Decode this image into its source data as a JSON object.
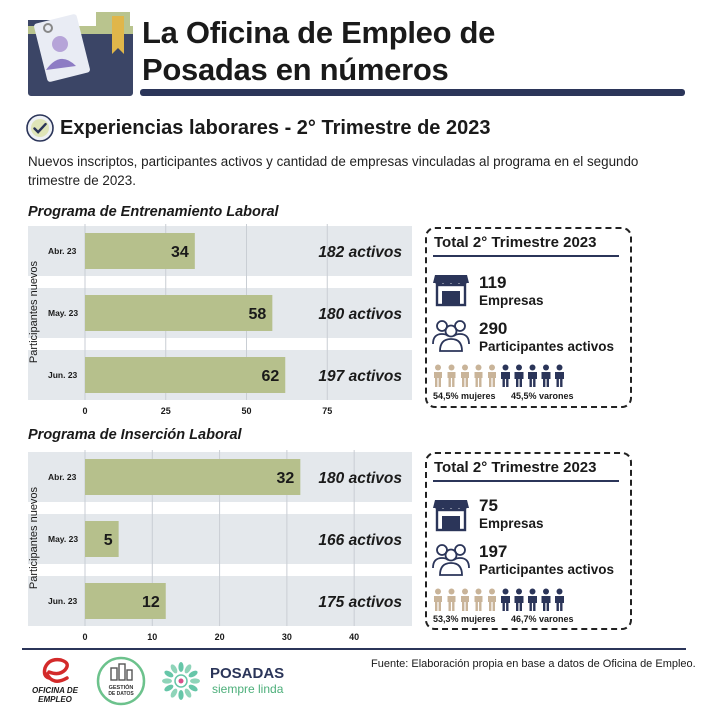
{
  "header": {
    "title_line1": "La Oficina de Empleo de",
    "title_line2": "Posadas en números"
  },
  "section": {
    "title": "Experiencias laborares - 2° Trimestre de 2023",
    "intro": "Nuevos inscriptos, participantes activos y cantidad de empresas vinculadas al programa en el segundo trimestre de 2023."
  },
  "chart_data": [
    {
      "type": "bar",
      "orientation": "horizontal",
      "title": "Programa de Entrenamiento Laboral",
      "ylabel": "Participantes nuevos",
      "categories": [
        "Abr. 23",
        "May. 23",
        "Jun. 23"
      ],
      "values": [
        34,
        58,
        62
      ],
      "active_labels": [
        "182 activos",
        "180 activos",
        "197 activos"
      ],
      "xticks": [
        0,
        25,
        50,
        75
      ],
      "xlim": [
        0,
        100
      ],
      "grid": true,
      "bar_color": "#b6c08c",
      "row_color": "#e4e8ec"
    },
    {
      "type": "bar",
      "orientation": "horizontal",
      "title": "Programa de Inserción Laboral",
      "ylabel": "Participantes nuevos",
      "categories": [
        "Abr. 23",
        "May. 23",
        "Jun. 23"
      ],
      "values": [
        32,
        5,
        12
      ],
      "active_labels": [
        "180 activos",
        "166 activos",
        "175 activos"
      ],
      "xticks": [
        0,
        10,
        20,
        30,
        40
      ],
      "xlim": [
        0,
        48
      ],
      "grid": true,
      "bar_color": "#b6c08c",
      "row_color": "#e4e8ec"
    }
  ],
  "totals": [
    {
      "title": "Total 2° Trimestre 2023",
      "empresas_num": "119",
      "empresas_label": "Empresas",
      "participantes_num": "290",
      "participantes_label": "Participantes activos",
      "mujeres": "54,5% mujeres",
      "varones": "45,5% varones"
    },
    {
      "title": "Total 2° Trimestre 2023",
      "empresas_num": "75",
      "empresas_label": "Empresas",
      "participantes_num": "197",
      "participantes_label": "Participantes activos",
      "mujeres": "53,3% mujeres",
      "varones": "46,7% varones"
    }
  ],
  "colors": {
    "navy": "#2b3559",
    "female": "#c9b499",
    "bar": "#b6c08c"
  },
  "footer": {
    "source": "Fuente: Elaboración propia en base a datos de Oficina de Empleo.",
    "logo1_text": "OFICINA DE EMPLEO",
    "logo2_text": "GESTIÓN DE DATOS",
    "posadas": "POSADAS",
    "posadas_sub": "siempre linda"
  }
}
